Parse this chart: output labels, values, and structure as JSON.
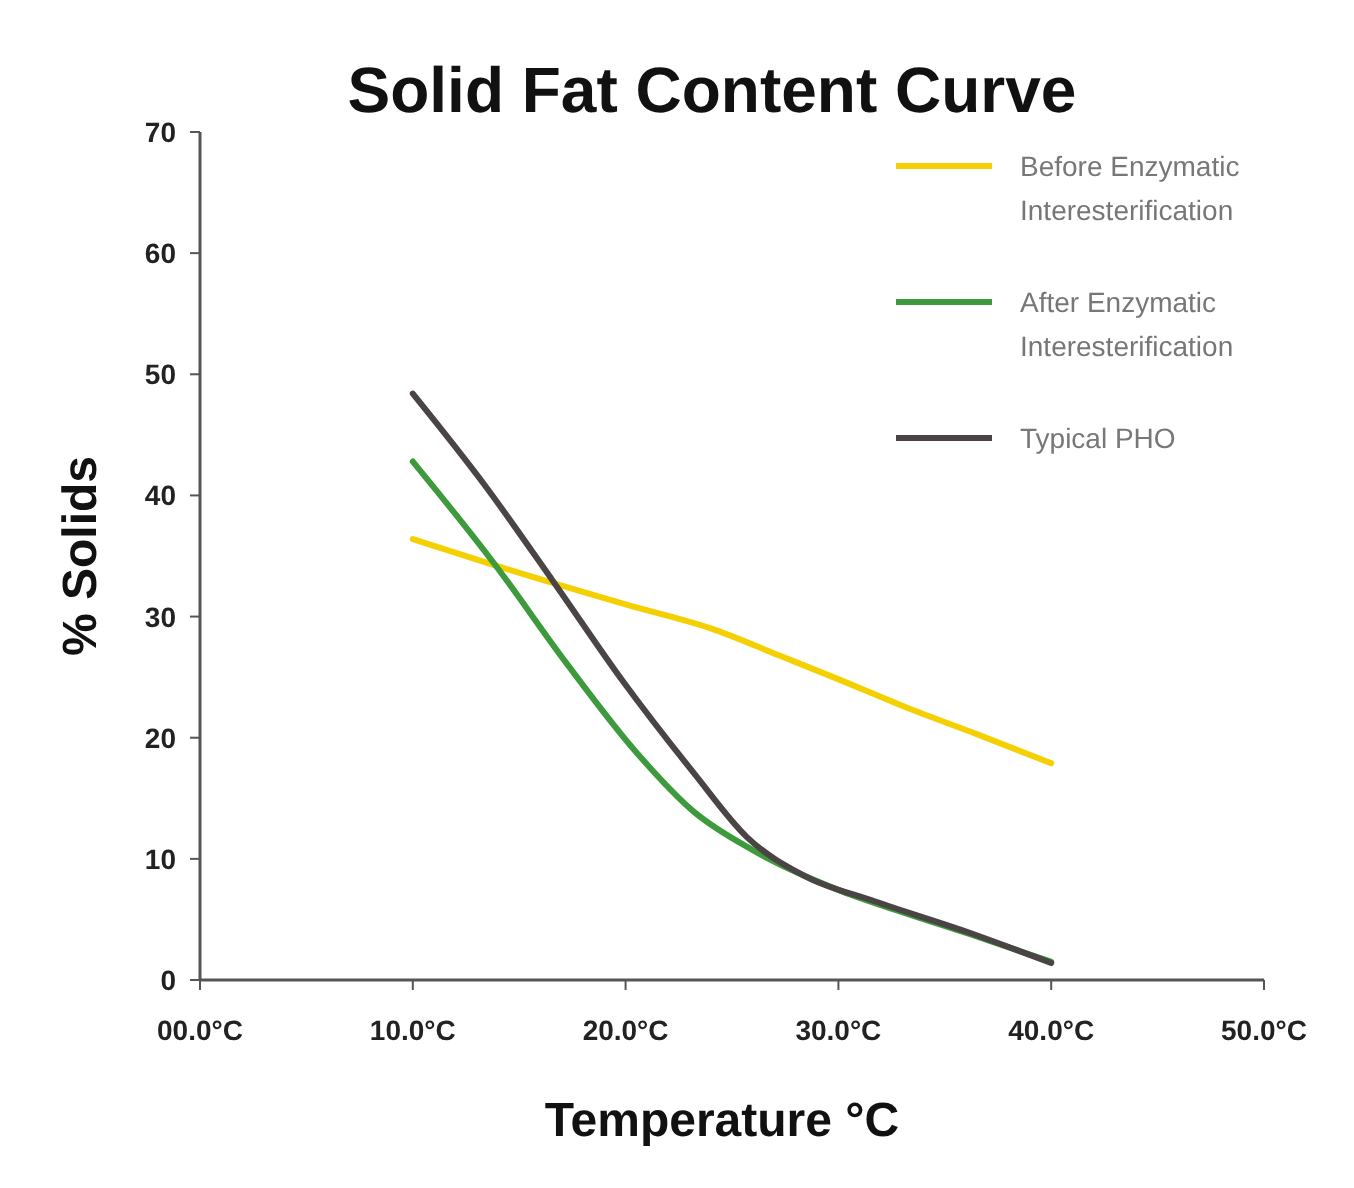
{
  "chart_data": {
    "type": "line",
    "title": "Solid Fat Content Curve",
    "xlabel": "Temperature °C",
    "ylabel": "% Solids",
    "xlim": [
      0,
      50
    ],
    "xticks": [
      {
        "value": 0,
        "label": "00.0°C"
      },
      {
        "value": 10,
        "label": "10.0°C"
      },
      {
        "value": 20,
        "label": "20.0°C"
      },
      {
        "value": 30,
        "label": "30.0°C"
      },
      {
        "value": 40,
        "label": "40.0°C"
      },
      {
        "value": 50,
        "label": "50.0°C"
      }
    ],
    "ylim": [
      0,
      70
    ],
    "yticks": [
      0,
      10,
      20,
      30,
      40,
      50,
      60,
      70
    ],
    "grid": false,
    "legend": "top right",
    "marker": "none",
    "line_style": "solid",
    "series": [
      {
        "name": "Before Enzymatic Interesterification",
        "color": "#f5d000",
        "x": [
          10,
          13.9,
          20,
          24.2,
          27.2,
          29.9,
          33.2,
          36.5,
          40
        ],
        "values": [
          36.4,
          34.2,
          31,
          28.9,
          26.8,
          24.9,
          22.5,
          20.3,
          17.9
        ]
      },
      {
        "name": "After Enzymatic Interesterification",
        "color": "#3d9a3d",
        "x": [
          10,
          13.9,
          17.2,
          20.5,
          23.2,
          26,
          29.9,
          33,
          36.5,
          40
        ],
        "values": [
          42.8,
          34.2,
          26.2,
          18.8,
          13.9,
          10.7,
          7.5,
          5.6,
          3.6,
          1.5
        ]
      },
      {
        "name": "Typical PHO",
        "color": "#4a4444",
        "x": [
          10,
          13.4,
          16.6,
          19.9,
          23.2,
          25.7,
          28.4,
          31.7,
          36,
          40
        ],
        "values": [
          48.4,
          40.8,
          32.9,
          24.6,
          17.1,
          11.8,
          8.6,
          6.5,
          4,
          1.4
        ]
      }
    ]
  }
}
